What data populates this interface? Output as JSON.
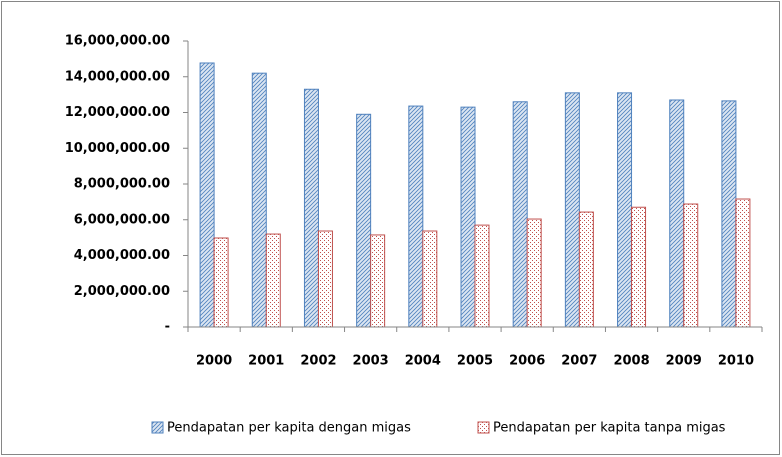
{
  "chart_data": {
    "type": "bar",
    "categories": [
      "2000",
      "2001",
      "2002",
      "2003",
      "2004",
      "2005",
      "2006",
      "2007",
      "2008",
      "2009",
      "2010"
    ],
    "series": [
      {
        "name": "Pendapatan per kapita dengan migas",
        "color": "#4f81bd",
        "values": [
          14770000,
          14200000,
          13300000,
          11900000,
          12360000,
          12300000,
          12600000,
          13100000,
          13100000,
          12700000,
          12650000
        ]
      },
      {
        "name": "Pendapatan per kapita tanpa migas",
        "color": "#c0504d",
        "values": [
          4980000,
          5200000,
          5370000,
          5150000,
          5370000,
          5700000,
          6040000,
          6430000,
          6700000,
          6880000,
          7160000
        ]
      }
    ],
    "ylim": [
      0,
      16000000
    ],
    "yticks": [
      {
        "value": 0,
        "label": "-"
      },
      {
        "value": 2000000,
        "label": "2,000,000.00"
      },
      {
        "value": 4000000,
        "label": "4,000,000.00"
      },
      {
        "value": 6000000,
        "label": "6,000,000.00"
      },
      {
        "value": 8000000,
        "label": "8,000,000.00"
      },
      {
        "value": 10000000,
        "label": "10,000,000.00"
      },
      {
        "value": 12000000,
        "label": "12,000,000.00"
      },
      {
        "value": 14000000,
        "label": "14,000,000.00"
      },
      {
        "value": 16000000,
        "label": "16,000,000.00"
      }
    ],
    "grid": false,
    "legend": "bottom"
  }
}
